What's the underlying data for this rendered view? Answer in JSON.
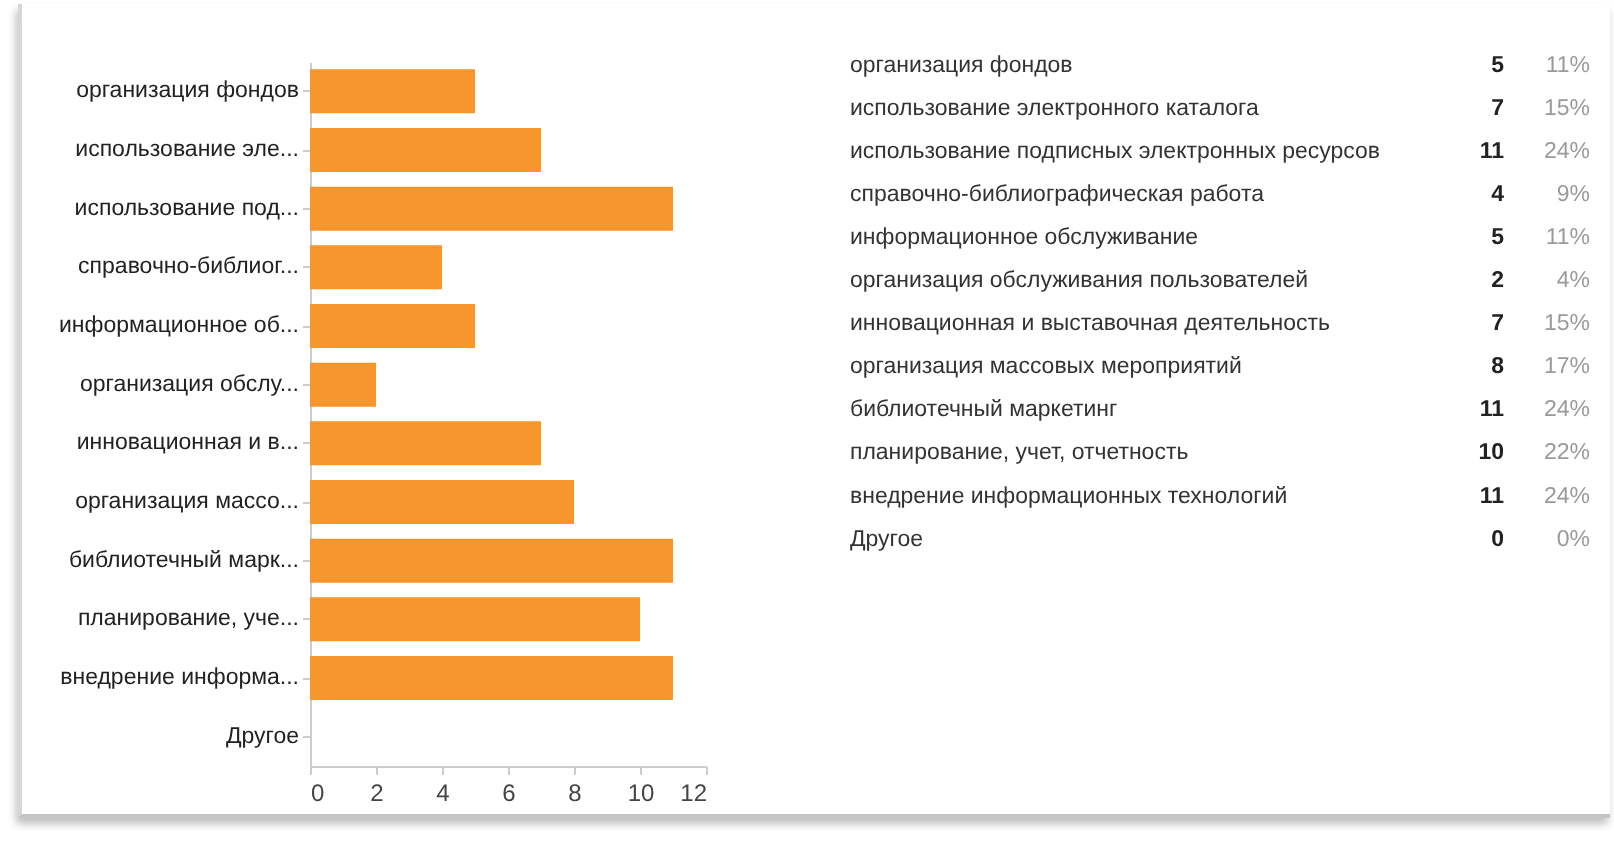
{
  "chart_data": [
    {
      "type": "bar",
      "orientation": "horizontal",
      "categories": [
        "организация фондов",
        "использование эле...",
        "использование под...",
        "справочно-библиог...",
        "информационное об...",
        "организация обслу...",
        "инновационная и в...",
        "организация массо...",
        "библиотечный марк...",
        "планирование, уче...",
        "внедрение информа...",
        "Другое"
      ],
      "values": [
        5,
        7,
        11,
        4,
        5,
        2,
        7,
        8,
        11,
        10,
        11,
        0
      ],
      "color": "#f7962d",
      "xlim": [
        0,
        12
      ],
      "xticks": [
        0,
        2,
        4,
        6,
        8,
        10,
        12
      ]
    },
    {
      "type": "other",
      "categories": [
        "организация фондов",
        "использование электронного каталога",
        "использование подписных электронных ресурсов",
        "справочно-библиографическая работа",
        "информационное обслуживание",
        "организация обслуживания пользователей",
        "инновационная и выставочная деятельность",
        "организация массовых мероприятий",
        "библиотечный маркетинг",
        "планирование, учет, отчетность",
        "внедрение информационных технологий",
        "Другое"
      ],
      "data_labels": true,
      "series": [
        {
          "values": [
            5,
            7,
            11,
            4,
            5,
            2,
            7,
            8,
            11,
            10,
            11,
            0
          ]
        },
        {
          "values": [
            11,
            15,
            24,
            9,
            11,
            4,
            15,
            17,
            24,
            22,
            24,
            0
          ],
          "value_labels": [
            "11%",
            "15%",
            "24%",
            "9%",
            "11%",
            "4%",
            "15%",
            "17%",
            "24%",
            "22%",
            "24%",
            "0%"
          ]
        }
      ]
    }
  ]
}
